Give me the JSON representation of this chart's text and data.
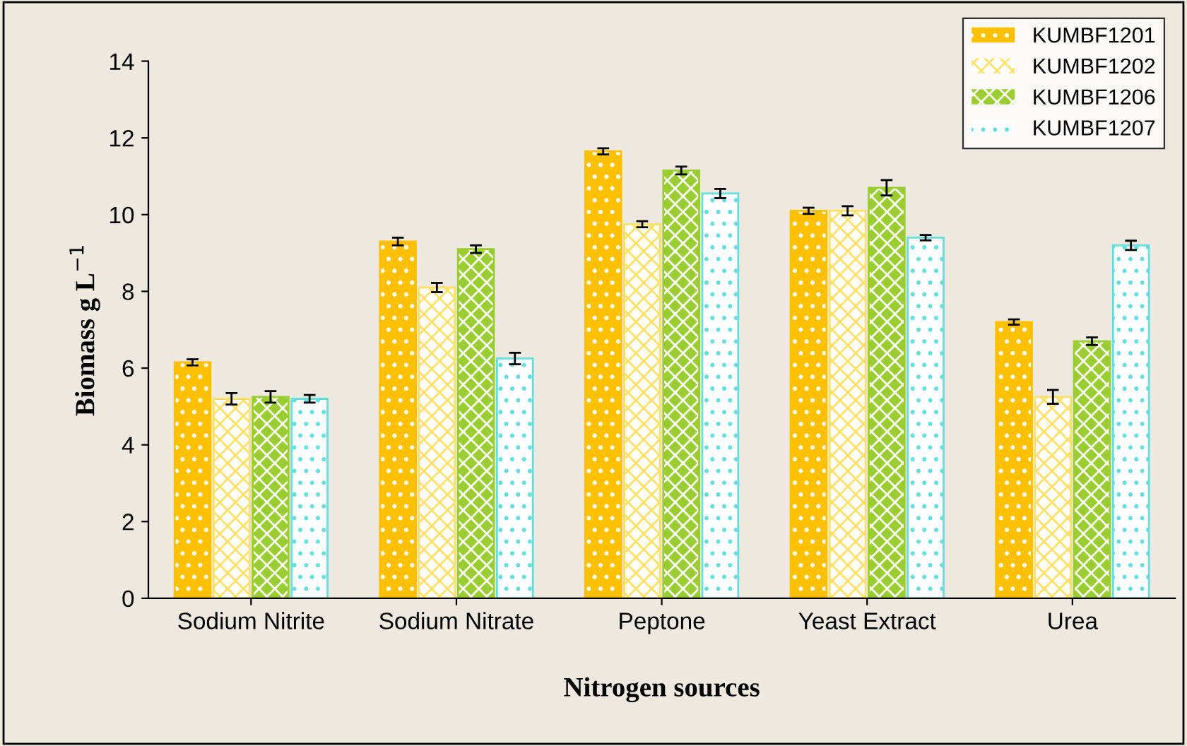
{
  "chart_data": {
    "type": "bar",
    "xlabel": "Nitrogen sources",
    "ylabel": "Biomass g L$^{−1}$",
    "categories": [
      "Sodium Nitrite",
      "Sodium Nitrate",
      "Peptone",
      "Yeast Extract",
      "Urea"
    ],
    "series": [
      {
        "name": "KUMBF1201",
        "color": "#ffc000",
        "values": [
          6.15,
          9.3,
          11.65,
          10.1,
          7.2
        ],
        "errors": [
          0.08,
          0.1,
          0.08,
          0.08,
          0.07
        ]
      },
      {
        "name": "KUMBF1202",
        "color": "#ffe066",
        "values": [
          5.2,
          8.1,
          9.75,
          10.1,
          5.25
        ],
        "errors": [
          0.15,
          0.12,
          0.08,
          0.12,
          0.18
        ]
      },
      {
        "name": "KUMBF1206",
        "color": "#9acd32",
        "values": [
          5.25,
          9.1,
          11.15,
          10.7,
          6.7
        ],
        "errors": [
          0.15,
          0.1,
          0.1,
          0.2,
          0.1
        ]
      },
      {
        "name": "KUMBF1207",
        "color": "#66dede",
        "values": [
          5.2,
          6.25,
          10.55,
          9.4,
          9.2
        ],
        "errors": [
          0.1,
          0.15,
          0.12,
          0.07,
          0.12
        ]
      }
    ],
    "ylim": [
      0,
      14
    ],
    "yticks": [
      0,
      2,
      4,
      6,
      8,
      10,
      12,
      14
    ],
    "grid": false,
    "legend": "top right"
  }
}
